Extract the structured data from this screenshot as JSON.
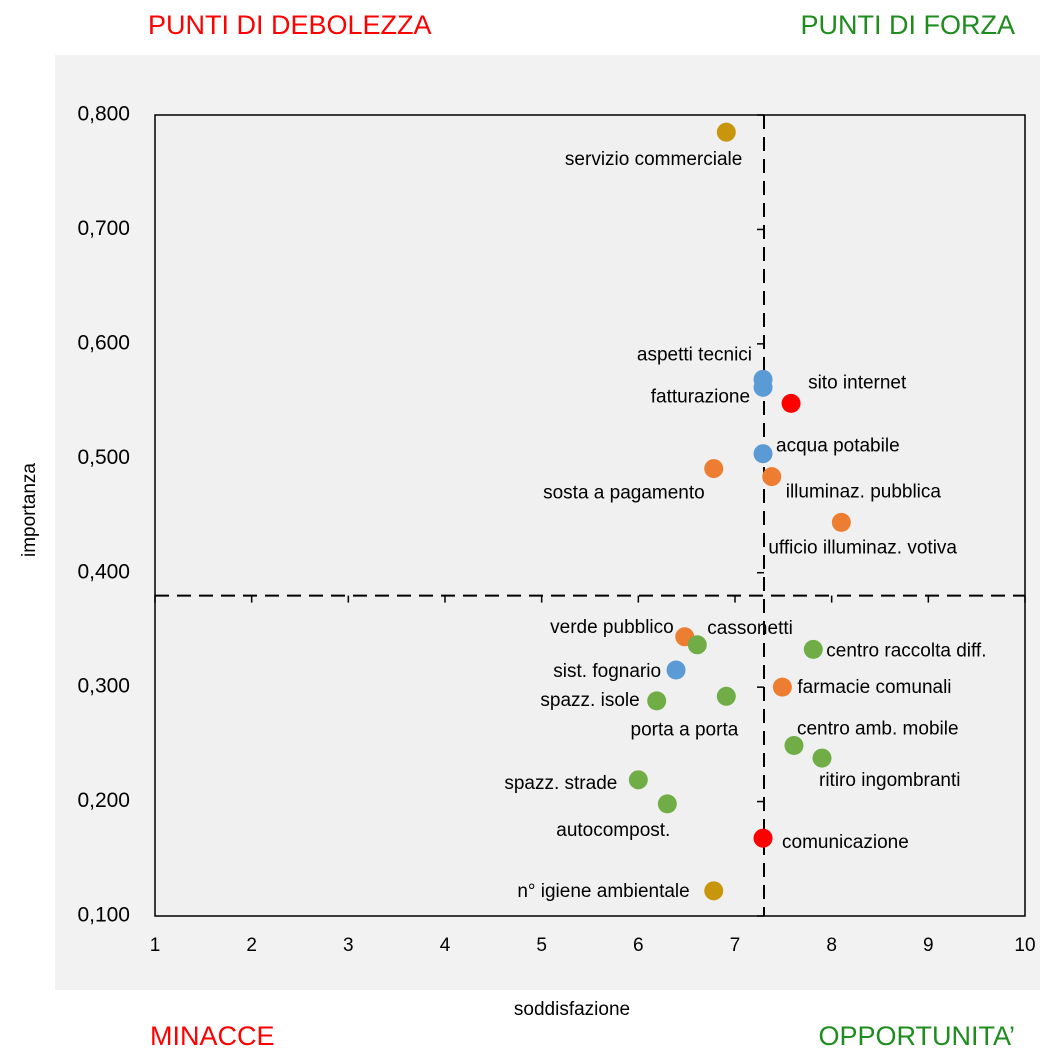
{
  "chart_data": {
    "type": "scatter",
    "quadrant_labels": {
      "top_left": "PUNTI DI DEBOLEZZA",
      "top_right": "PUNTI DI FORZA",
      "bottom_left": "MINACCE",
      "bottom_right": "OPPORTUNITA’"
    },
    "quadrant_colors": {
      "top_left": "#ff0000",
      "top_right": "#1e8c1e",
      "bottom_left": "#ff0000",
      "bottom_right": "#1e8c1e"
    },
    "x_label": "soddisfazione",
    "y_label": "importanza",
    "xlim": [
      1,
      10
    ],
    "ylim": [
      0.1,
      0.8
    ],
    "xticks": [
      1,
      2,
      3,
      4,
      5,
      6,
      7,
      8,
      9,
      10
    ],
    "yticks": [
      {
        "value": 0.1,
        "label": "0,100"
      },
      {
        "value": 0.2,
        "label": "0,200"
      },
      {
        "value": 0.3,
        "label": "0,300"
      },
      {
        "value": 0.4,
        "label": "0,400"
      },
      {
        "value": 0.5,
        "label": "0,500"
      },
      {
        "value": 0.6,
        "label": "0,600"
      },
      {
        "value": 0.7,
        "label": "0,700"
      },
      {
        "value": 0.8,
        "label": "0,800"
      }
    ],
    "y_axis_at_x": 7.3,
    "x_axis_at_y": 0.38,
    "series": [
      {
        "color": "#c8960c",
        "labels": [
          "servizio commerciale",
          "n° igiene ambientale"
        ],
        "x": [
          6.91,
          6.78
        ],
        "values": [
          0.785,
          0.122
        ]
      },
      {
        "color": "#5b9bd5",
        "labels": [
          "aspetti tecnici",
          "fatturazione",
          "acqua potabile",
          "sist. fognario"
        ],
        "x": [
          7.29,
          7.29,
          7.29,
          6.39
        ],
        "values": [
          0.569,
          0.562,
          0.504,
          0.315
        ]
      },
      {
        "color": "#ff0000",
        "labels": [
          "sito internet",
          "comunicazione"
        ],
        "x": [
          7.58,
          7.29
        ],
        "values": [
          0.548,
          0.168
        ]
      },
      {
        "color": "#ed7d31",
        "labels": [
          "sosta a pagamento",
          "illuminaz. pubblica",
          "ufficio illuminaz. votiva",
          "verde pubblico",
          "farmacie comunali"
        ],
        "x": [
          6.78,
          7.38,
          8.1,
          6.48,
          7.49
        ],
        "values": [
          0.491,
          0.484,
          0.444,
          0.344,
          0.3
        ]
      },
      {
        "color": "#70ad47",
        "labels": [
          "cassonetti",
          "centro raccolta diff.",
          "spazz. isole",
          "porta a porta",
          "centro amb. mobile",
          "ritiro ingombranti",
          "spazz. strade",
          "autocompost."
        ],
        "x": [
          6.61,
          7.81,
          6.19,
          6.91,
          7.61,
          7.9,
          6.0,
          6.3
        ],
        "values": [
          0.337,
          0.333,
          0.288,
          0.292,
          0.249,
          0.238,
          0.219,
          0.198
        ]
      }
    ]
  }
}
